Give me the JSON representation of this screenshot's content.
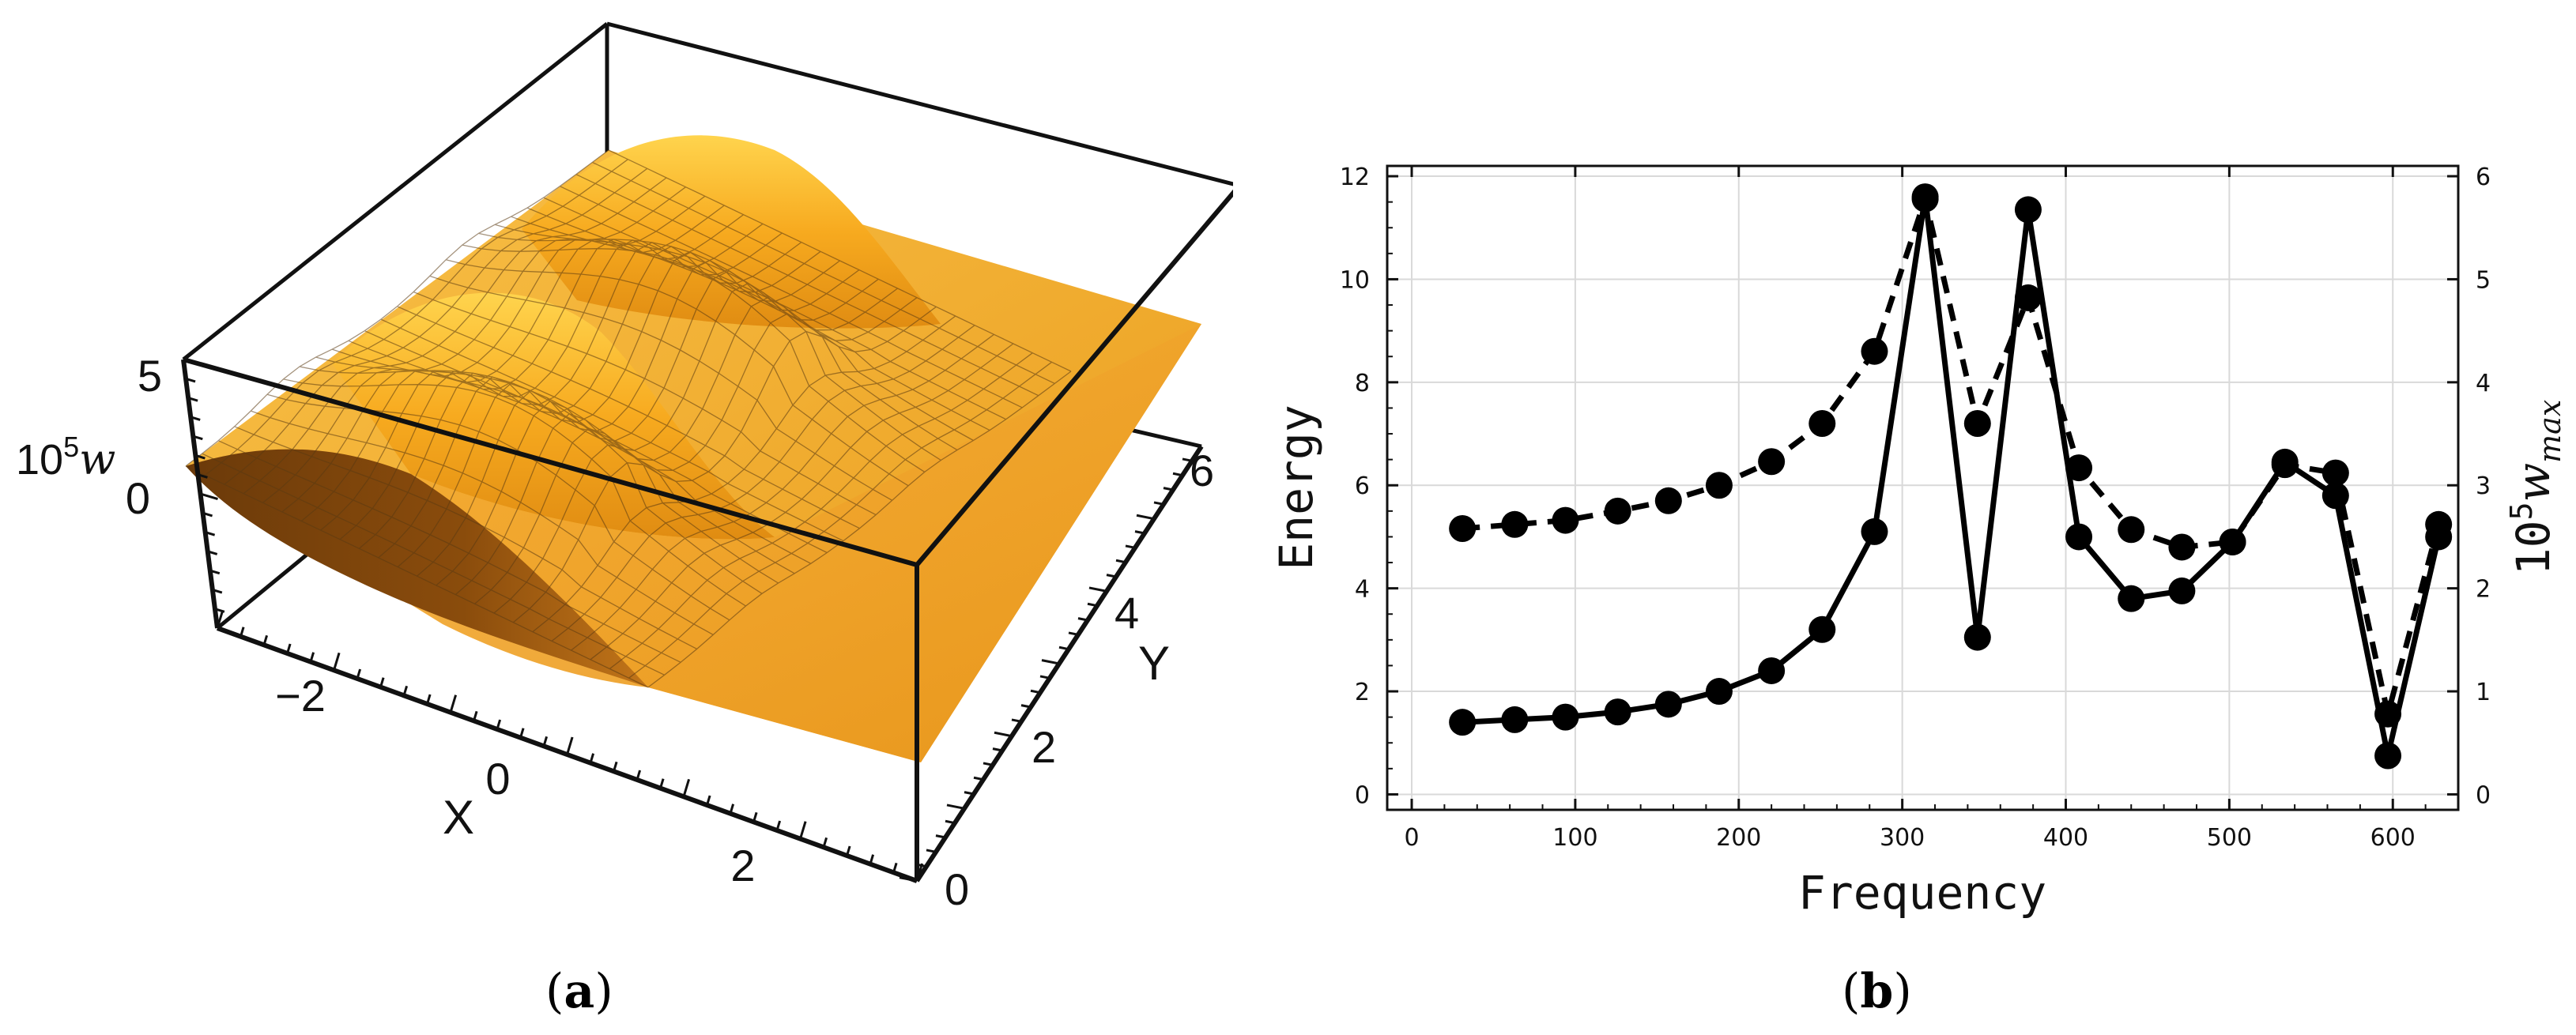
{
  "figure_a": {
    "caption_letter": "a",
    "z_label_base": "10",
    "z_label_exp": "5",
    "z_label_var": "w",
    "x_label": "X",
    "y_label": "Y",
    "x_ticks": [
      "−2",
      "0",
      "2"
    ],
    "y_ticks": [
      "0",
      "2",
      "4",
      "6"
    ],
    "z_ticks": [
      "5",
      "0"
    ],
    "surface_color": "#f2a41c"
  },
  "chart_data": [
    {
      "type": "surface3d",
      "title": "",
      "xlabel": "X",
      "ylabel": "Y",
      "zlabel": "10^5 w",
      "xlim": [
        -3,
        3
      ],
      "ylim": [
        0,
        6.3
      ],
      "zlim": [
        -1.5,
        5
      ],
      "x_ticks": [
        -2,
        0,
        2
      ],
      "y_ticks": [
        0,
        2,
        4,
        6
      ],
      "z_ticks": [
        0,
        5
      ]
    },
    {
      "type": "line",
      "title": "",
      "xlabel": "Frequency",
      "ylabel": "Energy",
      "y2label_base": "10",
      "y2label_exp": "5",
      "y2label_var": "w",
      "y2label_sub": "max",
      "xlim": [
        -15,
        640
      ],
      "ylim": [
        -0.3,
        12.2
      ],
      "y2lim": [
        -0.15,
        6.1
      ],
      "x_ticks": [
        0,
        100,
        200,
        300,
        400,
        500,
        600
      ],
      "y_ticks": [
        0,
        2,
        4,
        6,
        8,
        10,
        12
      ],
      "y2_ticks": [
        0,
        1,
        2,
        3,
        4,
        5,
        6
      ],
      "grid": true,
      "series": [
        {
          "name": "Energy",
          "axis": "left",
          "style": "solid",
          "x": [
            31,
            63,
            94,
            126,
            157,
            188,
            220,
            251,
            283,
            314,
            346,
            377,
            408,
            440,
            471,
            502,
            534,
            565,
            597,
            628
          ],
          "values": [
            1.4,
            1.45,
            1.5,
            1.6,
            1.75,
            2.0,
            2.4,
            3.2,
            5.1,
            11.6,
            3.05,
            11.35,
            5.0,
            3.8,
            3.95,
            4.9,
            6.45,
            5.8,
            0.75,
            5.0
          ]
        },
        {
          "name": "10^5 w_max",
          "axis": "right",
          "style": "dashed",
          "x": [
            31,
            63,
            94,
            126,
            157,
            188,
            220,
            251,
            283,
            314,
            346,
            377,
            408,
            440,
            471,
            502,
            534,
            565,
            597,
            628
          ],
          "values": [
            2.58,
            2.62,
            2.66,
            2.75,
            2.85,
            3.0,
            3.23,
            3.6,
            4.3,
            5.78,
            3.6,
            4.82,
            3.17,
            2.57,
            2.4,
            2.45,
            3.2,
            3.12,
            0.78,
            2.62
          ]
        }
      ]
    }
  ],
  "figure_b": {
    "caption_letter": "b"
  }
}
